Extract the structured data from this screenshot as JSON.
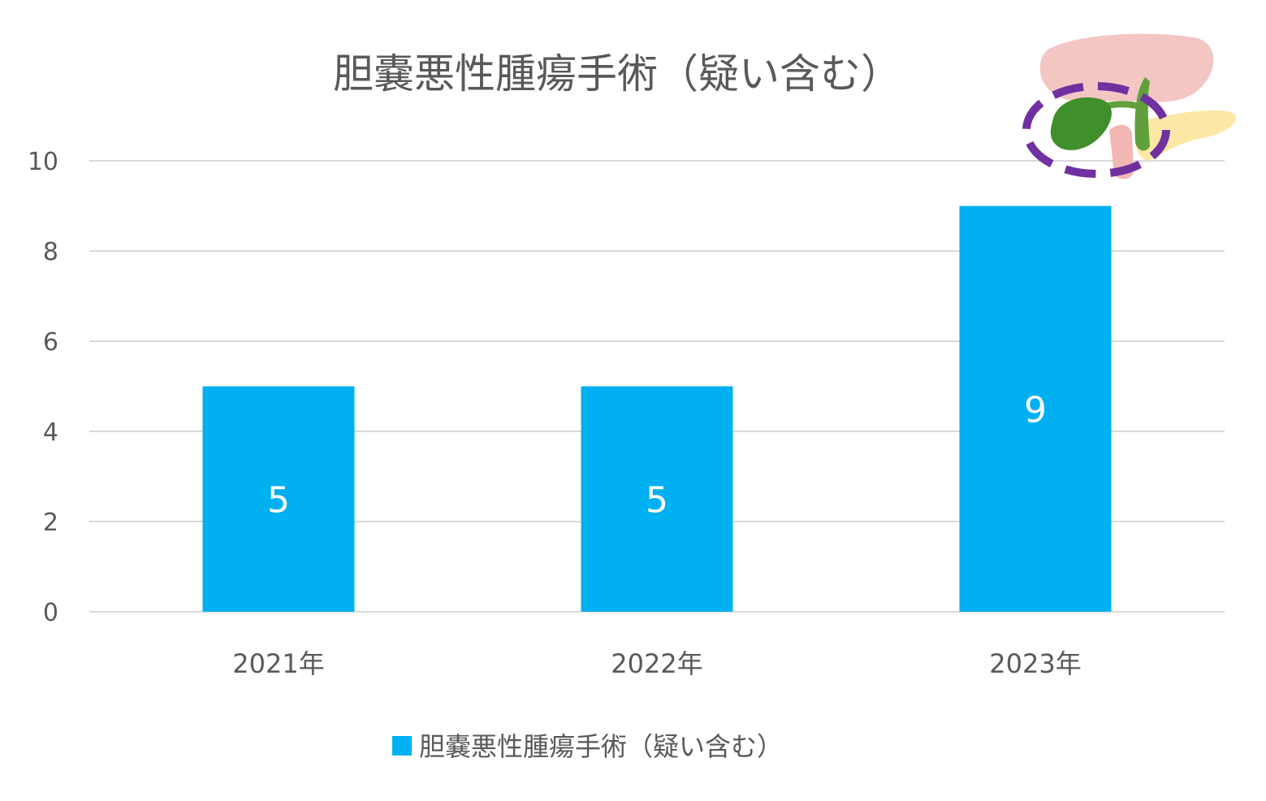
{
  "chart_data": {
    "type": "bar",
    "title": "胆嚢悪性腫瘍手術（疑い含む）",
    "categories": [
      "2021年",
      "2022年",
      "2023年"
    ],
    "series": [
      {
        "name": "胆嚢悪性腫瘍手術（疑い含む）",
        "values": [
          5,
          5,
          9
        ]
      }
    ],
    "ylim": [
      0,
      10
    ],
    "yticks": [
      0,
      2,
      4,
      6,
      8,
      10
    ],
    "data_labels": [
      "5",
      "5",
      "9"
    ],
    "grid": true,
    "legend_position": "bottom",
    "colors": {
      "bar": "#00b0f0",
      "grid": "#d9d9d9",
      "text": "#595959"
    }
  },
  "illustration": {
    "icon": "gallbladder-illustration-icon",
    "colors": {
      "liver": "#f3c6c3",
      "gallbladder": "#3f8f2a",
      "pancreas": "#fbe7a6",
      "circle": "#7030a0"
    }
  }
}
